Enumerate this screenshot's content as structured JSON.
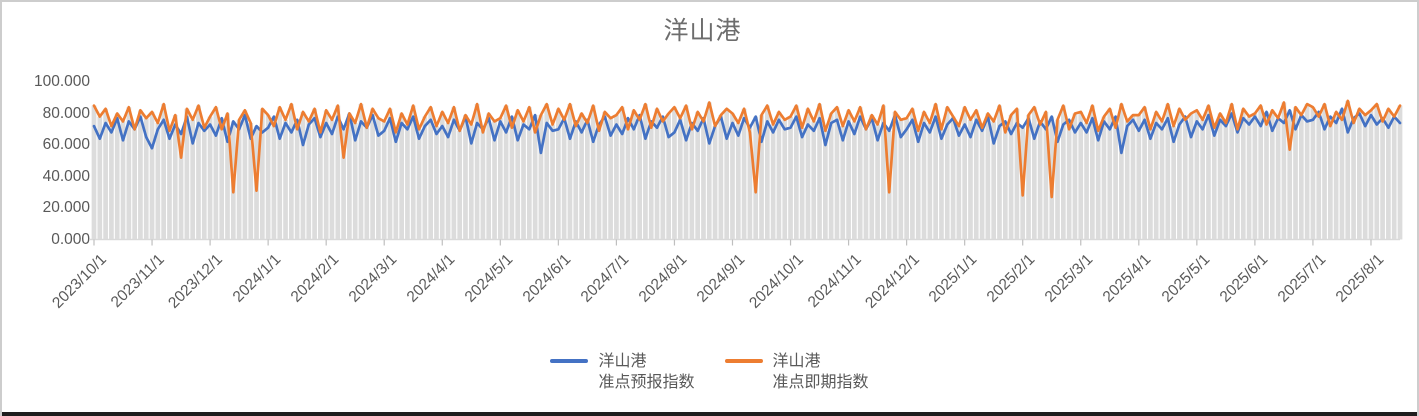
{
  "chart_data": {
    "type": "line",
    "title": "洋山港",
    "ylim": [
      0,
      100
    ],
    "grid": false,
    "legend_position": "bottom",
    "y_tick_values": [
      0,
      20,
      40,
      60,
      80,
      100
    ],
    "y_tick_labels": [
      "0.000",
      "20.000",
      "40.000",
      "60.000",
      "80.000",
      "100.000"
    ],
    "x_tick_labels": [
      "2023/10/1",
      "2023/11/1",
      "2023/12/1",
      "2024/1/1",
      "2024/2/1",
      "2024/3/1",
      "2024/4/1",
      "2024/5/1",
      "2024/6/1",
      "2024/7/1",
      "2024/8/1",
      "2024/9/1",
      "2024/10/1",
      "2024/11/1",
      "2024/12/1",
      "2025/1/1",
      "2025/2/1",
      "2025/3/1",
      "2025/4/1",
      "2025/5/1",
      "2025/6/1",
      "2025/7/1",
      "2025/8/1"
    ],
    "points_per_month": 10,
    "axis_color": "#d9d9d9",
    "tick_color": "#bfbfbf",
    "label_color": "#595959",
    "background_columns": {
      "color": "#dcdcdc",
      "height_rule": "max_of_series"
    },
    "legend": [
      {
        "line1": "洋山港",
        "line2": "准点预报指数",
        "color": "#4472c4"
      },
      {
        "line1": "洋山港",
        "line2": "准点即期指数",
        "color": "#ed7d31"
      }
    ],
    "series": [
      {
        "name": "洋山港 准点预报指数",
        "color": "#4472c4",
        "values": [
          72,
          64,
          74,
          68,
          77,
          63,
          75,
          70,
          78,
          65,
          58,
          70,
          76,
          64,
          73,
          67,
          78,
          61,
          74,
          69,
          73,
          66,
          77,
          62,
          75,
          70,
          79,
          64,
          72,
          68,
          71,
          78,
          64,
          74,
          68,
          76,
          60,
          73,
          77,
          65,
          74,
          67,
          78,
          70,
          80,
          63,
          75,
          71,
          79,
          66,
          69,
          77,
          62,
          74,
          70,
          78,
          64,
          72,
          76,
          67,
          72,
          65,
          76,
          69,
          78,
          61,
          74,
          70,
          77,
          63,
          75,
          68,
          78,
          63,
          73,
          70,
          79,
          55,
          74,
          69,
          70,
          77,
          64,
          75,
          68,
          76,
          62,
          73,
          78,
          66,
          73,
          67,
          77,
          70,
          79,
          64,
          75,
          71,
          78,
          65,
          68,
          76,
          63,
          74,
          69,
          77,
          61,
          72,
          78,
          64,
          74,
          66,
          77,
          71,
          78,
          62,
          75,
          68,
          76,
          70,
          71,
          78,
          65,
          73,
          69,
          77,
          60,
          74,
          76,
          63,
          75,
          67,
          78,
          70,
          77,
          63,
          74,
          69,
          79,
          65,
          70,
          76,
          62,
          74,
          68,
          78,
          64,
          73,
          77,
          66,
          73,
          65,
          76,
          69,
          78,
          61,
          72,
          75,
          67,
          74,
          71,
          77,
          64,
          75,
          70,
          78,
          62,
          73,
          76,
          68,
          74,
          68,
          77,
          63,
          75,
          70,
          78,
          55,
          72,
          76,
          69,
          76,
          64,
          74,
          70,
          77,
          62,
          73,
          78,
          65,
          75,
          70,
          79,
          66,
          76,
          72,
          80,
          68,
          77,
          73,
          78,
          72,
          81,
          69,
          77,
          74,
          82,
          70,
          79,
          75,
          76,
          81,
          70,
          78,
          74,
          83,
          68,
          77,
          80,
          72,
          79,
          73,
          77,
          71,
          78,
          74
        ]
      },
      {
        "name": "洋山港 准点即期指数",
        "color": "#ed7d31",
        "values": [
          85,
          78,
          83,
          72,
          80,
          75,
          84,
          70,
          82,
          77,
          81,
          74,
          86,
          69,
          79,
          52,
          83,
          76,
          85,
          71,
          78,
          84,
          70,
          80,
          30,
          76,
          82,
          74,
          31,
          83,
          79,
          72,
          84,
          76,
          86,
          70,
          81,
          75,
          83,
          68,
          82,
          76,
          85,
          52,
          80,
          74,
          86,
          71,
          83,
          77,
          75,
          83,
          68,
          80,
          73,
          85,
          70,
          78,
          84,
          72,
          81,
          74,
          84,
          69,
          79,
          73,
          86,
          68,
          80,
          75,
          77,
          85,
          71,
          82,
          75,
          84,
          68,
          79,
          86,
          73,
          83,
          76,
          86,
          72,
          80,
          74,
          85,
          69,
          81,
          77,
          79,
          84,
          70,
          82,
          76,
          86,
          71,
          83,
          75,
          80,
          84,
          77,
          85,
          70,
          81,
          75,
          87,
          72,
          79,
          83,
          80,
          74,
          83,
          68,
          30,
          79,
          85,
          73,
          81,
          76,
          78,
          85,
          71,
          83,
          75,
          86,
          69,
          80,
          84,
          72,
          82,
          75,
          84,
          70,
          79,
          73,
          85,
          30,
          81,
          76,
          77,
          83,
          69,
          81,
          74,
          86,
          70,
          84,
          78,
          72,
          84,
          76,
          82,
          71,
          80,
          75,
          85,
          68,
          79,
          83,
          28,
          79,
          84,
          73,
          81,
          27,
          76,
          85,
          70,
          80,
          81,
          74,
          85,
          69,
          78,
          83,
          71,
          86,
          75,
          79,
          79,
          84,
          70,
          81,
          75,
          86,
          72,
          83,
          76,
          80,
          82,
          76,
          85,
          71,
          80,
          74,
          86,
          70,
          83,
          78,
          80,
          85,
          73,
          82,
          77,
          87,
          57,
          84,
          79,
          86,
          84,
          78,
          86,
          72,
          81,
          76,
          88,
          74,
          83,
          79,
          82,
          86,
          75,
          83,
          78,
          85
        ]
      }
    ]
  }
}
